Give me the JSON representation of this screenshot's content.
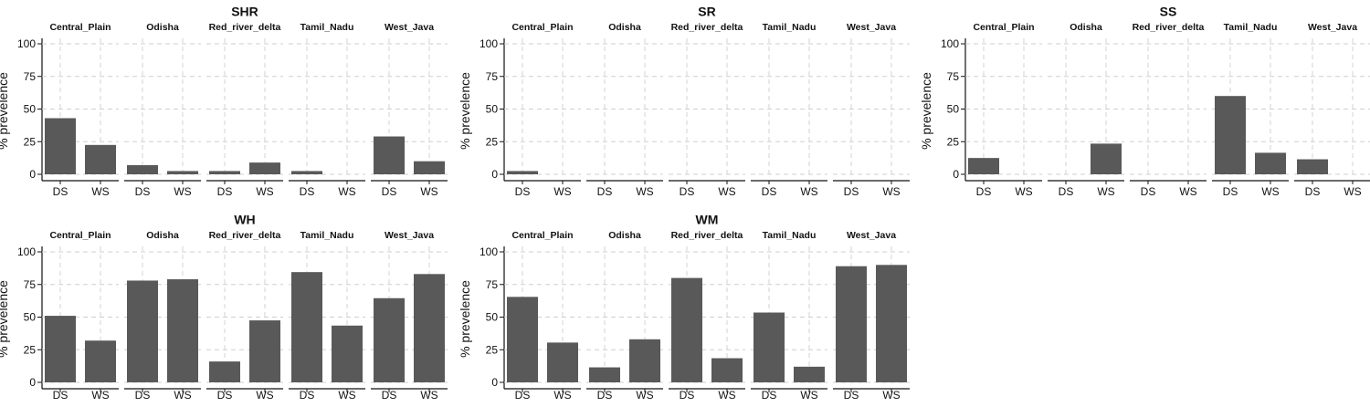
{
  "chart_data": [
    {
      "type": "bar",
      "title": "SHR",
      "ylabel": "% prevelence",
      "ylim": [
        0,
        100
      ],
      "yticks": [
        0,
        25,
        50,
        75,
        100
      ],
      "x_categories": [
        "DS",
        "WS"
      ],
      "grid": true,
      "facets": [
        {
          "label": "Central_Plain",
          "values": [
            43,
            22.5
          ]
        },
        {
          "label": "Odisha",
          "values": [
            7,
            2.5
          ]
        },
        {
          "label": "Red_river_delta",
          "values": [
            2.5,
            9
          ]
        },
        {
          "label": "Tamil_Nadu",
          "values": [
            2.5,
            0
          ]
        },
        {
          "label": "West_Java",
          "values": [
            29,
            10
          ]
        }
      ]
    },
    {
      "type": "bar",
      "title": "SR",
      "ylabel": "% prevelence",
      "ylim": [
        0,
        100
      ],
      "yticks": [
        0,
        25,
        50,
        75,
        100
      ],
      "x_categories": [
        "DS",
        "WS"
      ],
      "grid": true,
      "facets": [
        {
          "label": "Central_Plain",
          "values": [
            2.5,
            0
          ]
        },
        {
          "label": "Odisha",
          "values": [
            0,
            0
          ]
        },
        {
          "label": "Red_river_delta",
          "values": [
            0,
            0
          ]
        },
        {
          "label": "Tamil_Nadu",
          "values": [
            0,
            0
          ]
        },
        {
          "label": "West_Java",
          "values": [
            0,
            0
          ]
        }
      ]
    },
    {
      "type": "bar",
      "title": "SS",
      "ylabel": "% prevelence",
      "ylim": [
        0,
        100
      ],
      "yticks": [
        0,
        25,
        50,
        75,
        100
      ],
      "x_categories": [
        "DS",
        "WS"
      ],
      "grid": true,
      "facets": [
        {
          "label": "Central_Plain",
          "values": [
            12.5,
            0
          ]
        },
        {
          "label": "Odisha",
          "values": [
            0,
            23.5
          ]
        },
        {
          "label": "Red_river_delta",
          "values": [
            0,
            0
          ]
        },
        {
          "label": "Tamil_Nadu",
          "values": [
            60,
            16.5
          ]
        },
        {
          "label": "West_Java",
          "values": [
            11.5,
            0
          ]
        }
      ]
    },
    {
      "type": "bar",
      "title": "WH",
      "ylabel": "% prevelence",
      "ylim": [
        0,
        100
      ],
      "yticks": [
        0,
        25,
        50,
        75,
        100
      ],
      "x_categories": [
        "DS",
        "WS"
      ],
      "grid": true,
      "facets": [
        {
          "label": "Central_Plain",
          "values": [
            51,
            32
          ]
        },
        {
          "label": "Odisha",
          "values": [
            78,
            79
          ]
        },
        {
          "label": "Red_river_delta",
          "values": [
            16,
            47.5
          ]
        },
        {
          "label": "Tamil_Nadu",
          "values": [
            84.5,
            43.5
          ]
        },
        {
          "label": "West_Java",
          "values": [
            64.5,
            83
          ]
        }
      ]
    },
    {
      "type": "bar",
      "title": "WM",
      "ylabel": "% prevelence",
      "ylim": [
        0,
        100
      ],
      "yticks": [
        0,
        25,
        50,
        75,
        100
      ],
      "x_categories": [
        "DS",
        "WS"
      ],
      "grid": true,
      "facets": [
        {
          "label": "Central_Plain",
          "values": [
            65.5,
            30.5
          ]
        },
        {
          "label": "Odisha",
          "values": [
            11.5,
            33
          ]
        },
        {
          "label": "Red_river_delta",
          "values": [
            80,
            18.5
          ]
        },
        {
          "label": "Tamil_Nadu",
          "values": [
            53.5,
            12
          ]
        },
        {
          "label": "West_Java",
          "values": [
            89,
            90
          ]
        }
      ]
    }
  ],
  "colors": {
    "bar": "#595959",
    "grid": "#cfcfcf",
    "axis": "#111111",
    "background": "#ffffff"
  }
}
